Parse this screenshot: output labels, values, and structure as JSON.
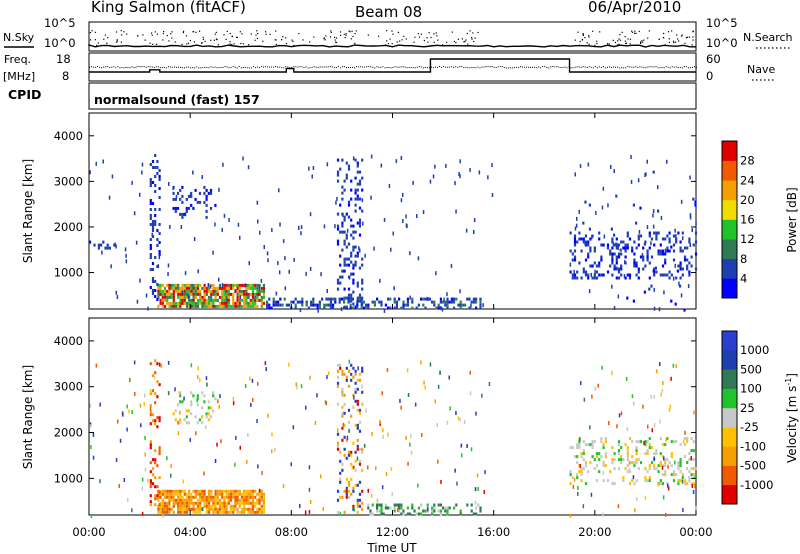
{
  "header": {
    "station": "King Salmon (fitACF)",
    "beam": "Beam 08",
    "date": "06/Apr/2010"
  },
  "status_panels": {
    "nsky_label": "N.Sky",
    "nsearch_label": "N.Search",
    "noise_ticks": [
      "10^5",
      "10^0"
    ],
    "freq_label": "Freq.",
    "freq_unit": "[MHz]",
    "freq_ticks": [
      "18",
      "8"
    ],
    "nave_label": "Nave",
    "nave_ticks": [
      "60",
      "0"
    ],
    "cpid_label": "CPID",
    "cpid_value": "normalsound (fast) 157"
  },
  "colors": {
    "power_scale": [
      "#0000ff",
      "#1f3fb0",
      "#2f7a55",
      "#22c22a",
      "#f0dc00",
      "#f4a000",
      "#f05a00",
      "#e00000"
    ],
    "velocity_scale": [
      "#e00000",
      "#f05a00",
      "#f4a000",
      "#ffc000",
      "#c8c8c8",
      "#22c22a",
      "#2f7a55",
      "#1f3fb0",
      "#2a3fd0"
    ]
  },
  "chart_data": [
    {
      "type": "heatmap",
      "name": "power",
      "xlabel": "",
      "ylabel": "Slant Range [km]",
      "x_ticks": [
        "00:00",
        "04:00",
        "08:00",
        "12:00",
        "16:00",
        "20:00",
        "00:00"
      ],
      "xlim_hours": [
        0,
        24
      ],
      "ylim_km": [
        200,
        4500
      ],
      "y_ticks": [
        1000,
        2000,
        3000,
        4000
      ],
      "colorbar": {
        "label": "Power [dB]",
        "ticks": [
          4,
          8,
          12,
          16,
          20,
          24,
          28
        ],
        "range": [
          0,
          30
        ]
      },
      "regions": [
        {
          "t0": 2.7,
          "t1": 6.9,
          "r0": 250,
          "r1": 750,
          "level": "high"
        },
        {
          "t0": 3.3,
          "t1": 5.0,
          "r0": 2200,
          "r1": 2900,
          "level": "low"
        },
        {
          "t0": 0.0,
          "t1": 1.0,
          "r0": 1550,
          "r1": 1700,
          "level": "low"
        },
        {
          "t0": 2.4,
          "t1": 2.8,
          "r0": 400,
          "r1": 3600,
          "level": "low"
        },
        {
          "t0": 9.8,
          "t1": 10.8,
          "r0": 250,
          "r1": 3500,
          "level": "low"
        },
        {
          "t0": 7.0,
          "t1": 15.5,
          "r0": 200,
          "r1": 450,
          "level": "mid"
        },
        {
          "t0": 19.0,
          "t1": 24.0,
          "r0": 900,
          "r1": 1900,
          "level": "low"
        },
        {
          "t0": 19.5,
          "t1": 24.0,
          "r0": 200,
          "r1": 3500,
          "level": "sparse"
        }
      ]
    },
    {
      "type": "heatmap",
      "name": "velocity",
      "xlabel": "Time UT",
      "ylabel": "Slant Range [km]",
      "x_ticks": [
        "00:00",
        "04:00",
        "08:00",
        "12:00",
        "16:00",
        "20:00",
        "00:00"
      ],
      "xlim_hours": [
        0,
        24
      ],
      "ylim_km": [
        200,
        4500
      ],
      "y_ticks": [
        1000,
        2000,
        3000,
        4000
      ],
      "colorbar": {
        "label": "Velocity [m s^-1]",
        "ticks": [
          -1000,
          -500,
          -100,
          -25,
          25,
          100,
          500,
          1000
        ],
        "range": [
          -1000,
          1000
        ]
      },
      "regions": [
        {
          "t0": 2.7,
          "t1": 6.9,
          "r0": 250,
          "r1": 750,
          "level": "-100"
        },
        {
          "t0": 3.3,
          "t1": 5.0,
          "r0": 2200,
          "r1": 2900,
          "level": "25"
        },
        {
          "t0": 2.4,
          "t1": 2.8,
          "r0": 400,
          "r1": 3600,
          "level": "-500"
        },
        {
          "t0": 9.8,
          "t1": 10.8,
          "r0": 250,
          "r1": 3500,
          "level": "mixed"
        },
        {
          "t0": 11.0,
          "t1": 15.5,
          "r0": 200,
          "r1": 450,
          "level": "100"
        },
        {
          "t0": 19.0,
          "t1": 24.0,
          "r0": 900,
          "r1": 1900,
          "level": "25"
        }
      ]
    }
  ],
  "colorbar_labels": {
    "power_title": "Power [dB]",
    "velocity_title_main": "Velocity [m s",
    "velocity_title_exp": "-1",
    "velocity_title_end": "]",
    "power_tick_text": [
      "28",
      "24",
      "20",
      "16",
      "12",
      "8",
      "4"
    ],
    "velocity_tick_text": [
      "1000",
      "500",
      "100",
      "25",
      "-25",
      "-100",
      "-500",
      "-1000"
    ]
  }
}
